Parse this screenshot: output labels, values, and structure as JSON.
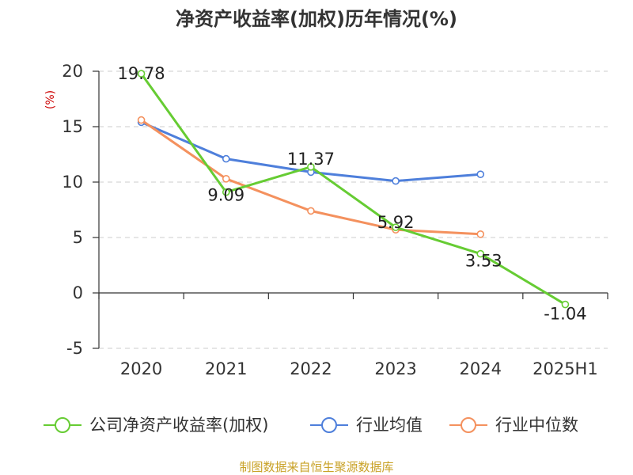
{
  "chart_data": {
    "type": "line",
    "title": "净资产收益率(加权)历年情况(%)",
    "ylabel": "(%)",
    "categories": [
      "2020",
      "2021",
      "2022",
      "2023",
      "2024",
      "2025H1"
    ],
    "ylim": [
      -5,
      20
    ],
    "yticks": [
      20,
      15,
      10,
      5,
      0,
      -5
    ],
    "grid": true,
    "legend_position": "bottom",
    "series": [
      {
        "name": "公司净资产收益率(加权)",
        "color": "#66CC33",
        "values": [
          19.78,
          9.09,
          11.37,
          5.92,
          3.53,
          -1.04
        ],
        "labels": [
          "19.78",
          "9.09",
          "11.37",
          "5.92",
          "3.53",
          "-1.04"
        ]
      },
      {
        "name": "行业均值",
        "color": "#4E7FDB",
        "values": [
          15.4,
          12.1,
          10.9,
          10.1,
          10.7,
          null
        ]
      },
      {
        "name": "行业中位数",
        "color": "#F4915E",
        "values": [
          15.6,
          10.3,
          7.4,
          5.7,
          5.3,
          null
        ]
      }
    ]
  },
  "footer": {
    "source": "制图数据来自恒生聚源数据库"
  },
  "colors": {
    "unit_label": "#CC0000",
    "source_text": "#C9A227",
    "axis": "#333333",
    "grid": "#CCCCCC"
  }
}
